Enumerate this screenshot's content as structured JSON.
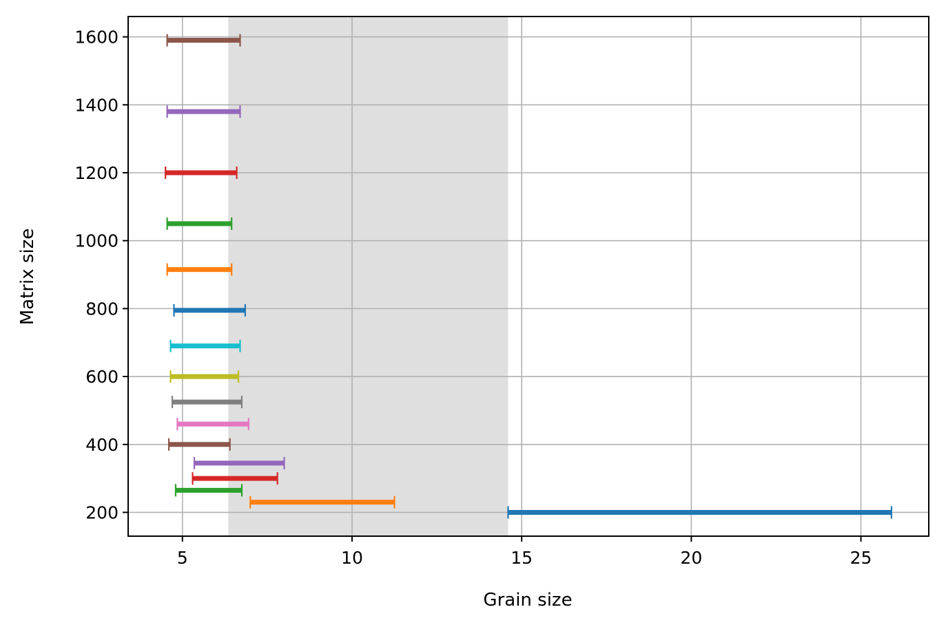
{
  "chart_data": {
    "type": "range_bar",
    "xlabel": "Grain size",
    "ylabel": "Matrix size",
    "xlim": [
      3.4,
      27.0
    ],
    "ylim": [
      130,
      1660
    ],
    "xticks": [
      5,
      10,
      15,
      20,
      25
    ],
    "yticks": [
      200,
      400,
      600,
      800,
      1000,
      1200,
      1400,
      1600
    ],
    "grid": true,
    "shaded_region": {
      "x": [
        6.35,
        14.6
      ],
      "color": "#dfdfdf"
    },
    "series": [
      {
        "y": 200,
        "x": [
          14.6,
          25.9
        ],
        "color": "#1f77b4"
      },
      {
        "y": 230,
        "x": [
          7.0,
          11.25
        ],
        "color": "#ff7f0e"
      },
      {
        "y": 265,
        "x": [
          4.8,
          6.75
        ],
        "color": "#2ca02c"
      },
      {
        "y": 300,
        "x": [
          5.3,
          7.8
        ],
        "color": "#d62728"
      },
      {
        "y": 345,
        "x": [
          5.35,
          8.0
        ],
        "color": "#9467bd"
      },
      {
        "y": 400,
        "x": [
          4.6,
          6.4
        ],
        "color": "#8c564b"
      },
      {
        "y": 460,
        "x": [
          4.85,
          6.95
        ],
        "color": "#e377c2"
      },
      {
        "y": 525,
        "x": [
          4.7,
          6.75
        ],
        "color": "#7f7f7f"
      },
      {
        "y": 600,
        "x": [
          4.65,
          6.65
        ],
        "color": "#bcbd22"
      },
      {
        "y": 690,
        "x": [
          4.65,
          6.7
        ],
        "color": "#17becf"
      },
      {
        "y": 795,
        "x": [
          4.75,
          6.85
        ],
        "color": "#1f77b4"
      },
      {
        "y": 915,
        "x": [
          4.55,
          6.45
        ],
        "color": "#ff7f0e"
      },
      {
        "y": 1050,
        "x": [
          4.55,
          6.45
        ],
        "color": "#2ca02c"
      },
      {
        "y": 1200,
        "x": [
          4.5,
          6.6
        ],
        "color": "#d62728"
      },
      {
        "y": 1380,
        "x": [
          4.55,
          6.7
        ],
        "color": "#9467bd"
      },
      {
        "y": 1590,
        "x": [
          4.55,
          6.7
        ],
        "color": "#8c564b"
      }
    ]
  }
}
